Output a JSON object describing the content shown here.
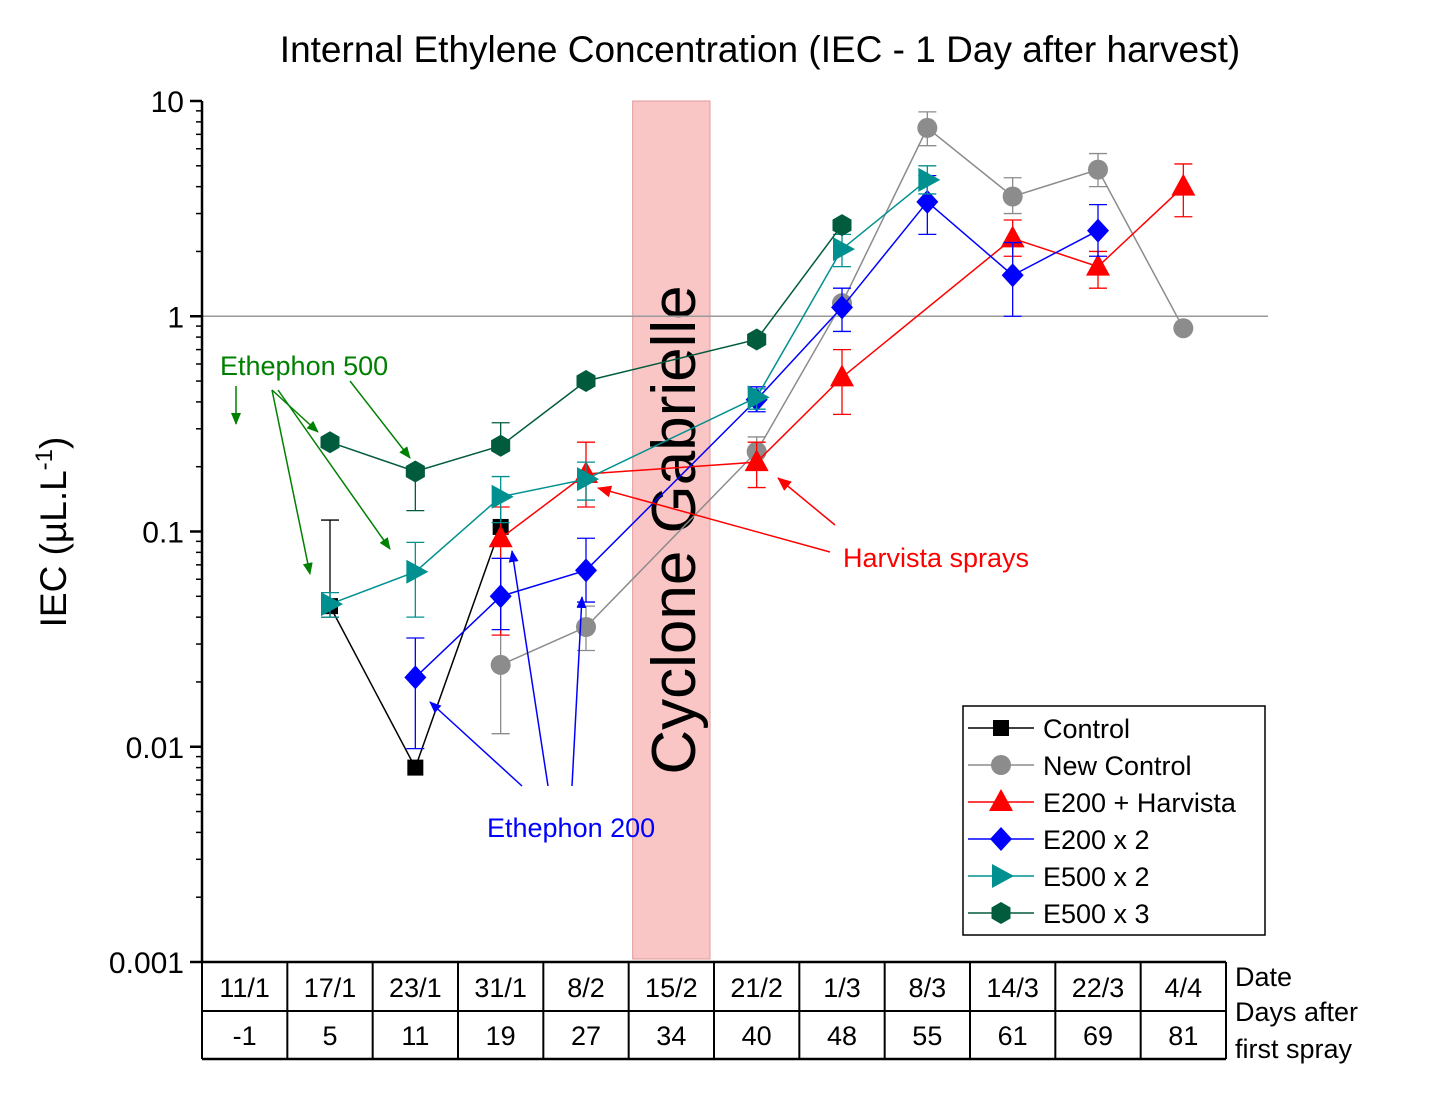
{
  "chart_data": {
    "type": "line",
    "title": "Internal Ethylene Concentration (IEC - 1 Day after harvest)",
    "ylabel_main": "IEC (µL.L",
    "ylabel_sup": "-1",
    "ylabel_close": ")",
    "yscale": "log",
    "ylim": [
      0.001,
      10
    ],
    "yticks": [
      {
        "value": 10,
        "label": "10"
      },
      {
        "value": 1,
        "label": "1"
      },
      {
        "value": 0.1,
        "label": "0.1"
      },
      {
        "value": 0.01,
        "label": "0.01"
      },
      {
        "value": 0.001,
        "label": "0.001"
      }
    ],
    "reference_line": 1,
    "categories": [
      "11/1",
      "17/1",
      "23/1",
      "31/1",
      "8/2",
      "15/2",
      "21/2",
      "1/3",
      "8/3",
      "14/3",
      "22/3",
      "4/4"
    ],
    "days": [
      "-1",
      "5",
      "11",
      "19",
      "27",
      "34",
      "40",
      "48",
      "55",
      "61",
      "69",
      "81"
    ],
    "row_label_date": "Date",
    "row_label_days_1": "Days after",
    "row_label_days_2": "first spray",
    "series": [
      {
        "name": "Control",
        "color": "#000000",
        "marker": "square",
        "values": [
          null,
          0.045,
          0.008,
          0.105,
          null,
          null,
          null,
          null,
          null,
          null,
          null,
          null
        ],
        "err_hi": [
          null,
          0.113,
          null,
          null,
          null,
          null,
          null,
          null,
          null,
          null,
          null,
          null
        ],
        "err_lo": [
          null,
          0.04,
          null,
          null,
          null,
          null,
          null,
          null,
          null,
          null,
          null,
          null
        ]
      },
      {
        "name": "New Control",
        "color": "#8c8c8c",
        "marker": "circle",
        "values": [
          null,
          null,
          null,
          0.024,
          0.036,
          null,
          0.235,
          1.15,
          7.5,
          3.6,
          4.8,
          0.88
        ],
        "err_hi": [
          null,
          null,
          null,
          0.075,
          0.045,
          null,
          0.275,
          null,
          8.9,
          4.4,
          5.7,
          null
        ],
        "err_lo": [
          null,
          null,
          null,
          0.0115,
          0.028,
          null,
          0.195,
          null,
          6.2,
          3.0,
          4.0,
          null
        ]
      },
      {
        "name": "E200 + Harvista",
        "color": "#ff0000",
        "marker": "triangle-up",
        "values": [
          null,
          null,
          null,
          0.093,
          0.185,
          null,
          0.21,
          0.52,
          null,
          2.3,
          1.7,
          4.0
        ],
        "err_hi": [
          null,
          null,
          null,
          0.13,
          0.26,
          null,
          0.26,
          0.7,
          null,
          2.8,
          2.0,
          5.1
        ],
        "err_lo": [
          null,
          null,
          null,
          0.033,
          0.13,
          null,
          0.16,
          0.35,
          null,
          1.9,
          1.35,
          2.9
        ]
      },
      {
        "name": "E200 x 2",
        "color": "#0000ff",
        "marker": "diamond",
        "values": [
          null,
          null,
          0.021,
          0.05,
          0.066,
          null,
          0.41,
          1.1,
          3.4,
          1.55,
          2.5,
          null
        ],
        "err_hi": [
          null,
          null,
          0.032,
          0.075,
          0.093,
          null,
          0.47,
          1.35,
          4.5,
          2.2,
          3.3,
          null
        ],
        "err_lo": [
          null,
          null,
          0.0098,
          0.035,
          0.047,
          null,
          0.36,
          0.85,
          2.4,
          1.0,
          1.9,
          null
        ]
      },
      {
        "name": "E500 x 2",
        "color": "#009090",
        "marker": "triangle-right",
        "values": [
          null,
          0.046,
          0.065,
          0.145,
          0.175,
          null,
          0.42,
          2.05,
          4.3,
          null,
          null,
          null
        ],
        "err_hi": [
          null,
          0.052,
          0.089,
          0.18,
          0.21,
          null,
          0.46,
          2.4,
          5.0,
          null,
          null,
          null
        ],
        "err_lo": [
          null,
          0.04,
          0.04,
          0.11,
          0.14,
          null,
          0.37,
          1.7,
          3.7,
          null,
          null,
          null
        ]
      },
      {
        "name": "E500 x 3",
        "color": "#005c3c",
        "marker": "hexagon",
        "values": [
          null,
          0.26,
          0.19,
          0.25,
          0.5,
          null,
          0.78,
          2.65,
          null,
          null,
          null,
          null
        ],
        "err_hi": [
          null,
          null,
          0.125,
          0.32,
          null,
          null,
          null,
          null,
          null,
          null,
          null,
          null
        ],
        "err_lo": [
          null,
          null,
          null,
          null,
          null,
          null,
          null,
          null,
          null,
          null,
          null,
          null
        ]
      }
    ],
    "shaded_band": {
      "category": "15/2",
      "label": "Cyclone Gabrielle",
      "color": "#f9c5c5"
    },
    "annotations": [
      {
        "text": "Ethephon 500",
        "color": "#008000"
      },
      {
        "text": "Ethephon 200",
        "color": "#0000ff"
      },
      {
        "text": "Harvista sprays",
        "color": "#ff0000"
      }
    ],
    "legend_position": "bottom-right"
  }
}
